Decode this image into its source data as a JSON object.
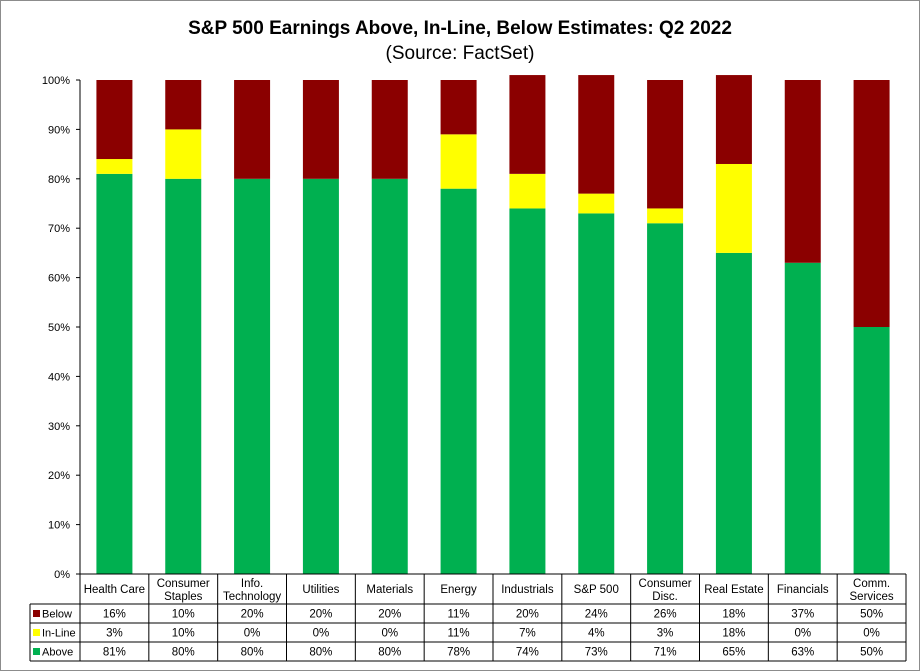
{
  "chart_data": {
    "type": "bar",
    "stacked": true,
    "title": "S&P 500 Earnings Above, In-Line, Below Estimates: Q2 2022",
    "subtitle": "(Source: FactSet)",
    "categories": [
      [
        "Health Care"
      ],
      [
        "Consumer",
        "Staples"
      ],
      [
        "Info.",
        "Technology"
      ],
      [
        "Utilities"
      ],
      [
        "Materials"
      ],
      [
        "Energy"
      ],
      [
        "Industrials"
      ],
      [
        "S&P 500"
      ],
      [
        "Consumer",
        "Disc."
      ],
      [
        "Real Estate"
      ],
      [
        "Financials"
      ],
      [
        "Comm.",
        "Services"
      ]
    ],
    "series": [
      {
        "name": "Below",
        "color": "#8b0000",
        "values": [
          16,
          10,
          20,
          20,
          20,
          11,
          20,
          24,
          26,
          18,
          37,
          50
        ]
      },
      {
        "name": "In-Line",
        "color": "#ffff00",
        "values": [
          3,
          10,
          0,
          0,
          0,
          11,
          7,
          4,
          3,
          18,
          0,
          0
        ]
      },
      {
        "name": "Above",
        "color": "#00b050",
        "values": [
          81,
          80,
          80,
          80,
          80,
          78,
          74,
          73,
          71,
          65,
          63,
          50
        ]
      }
    ],
    "ylim": [
      0,
      100
    ],
    "yticks": [
      0,
      10,
      20,
      30,
      40,
      50,
      60,
      70,
      80,
      90,
      100
    ],
    "ytick_suffix": "%",
    "value_suffix": "%",
    "grid": false,
    "legend": "data-table-left"
  }
}
